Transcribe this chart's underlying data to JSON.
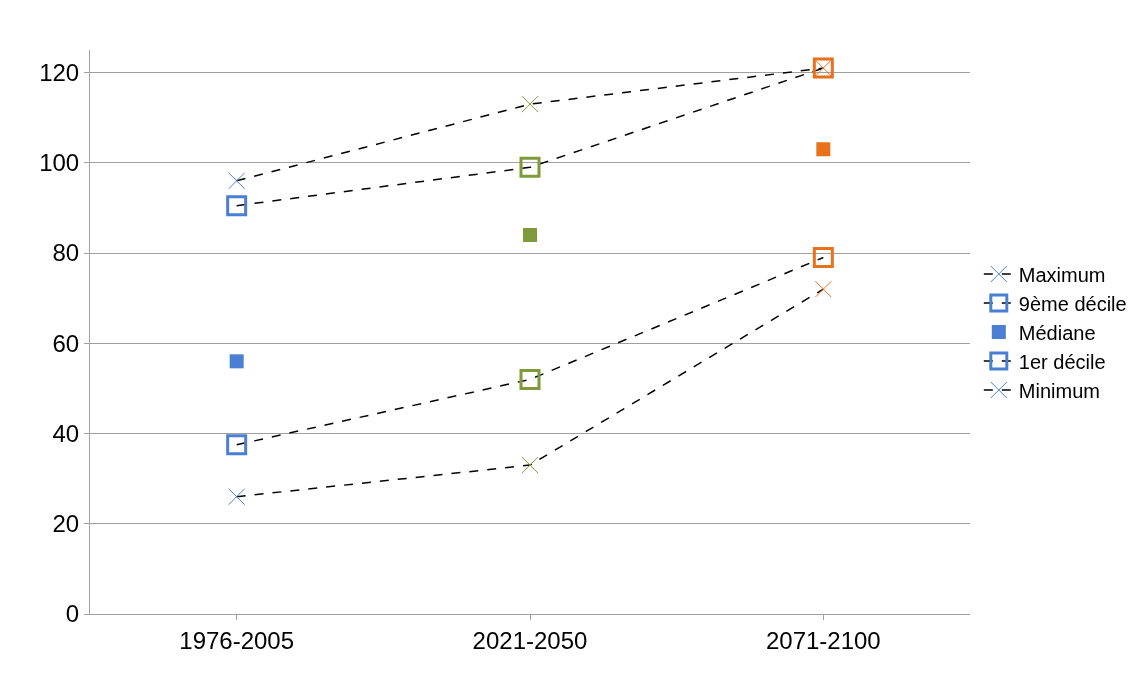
{
  "chart_data": {
    "type": "line",
    "categories": [
      "1976-2005",
      "2021-2050",
      "2071-2100"
    ],
    "ylim": [
      0,
      125
    ],
    "yticks": [
      0,
      20,
      40,
      60,
      80,
      100,
      120
    ],
    "grid": "y",
    "legend": "right",
    "line_style": "dashed",
    "series": [
      {
        "name": "Maximum",
        "marker": "cross",
        "colors": [
          "#4a7fd4",
          "#7f9a3a",
          "#e8711c"
        ],
        "values": [
          96,
          113,
          121
        ]
      },
      {
        "name": "9ème décile",
        "marker": "square",
        "colors": [
          "#4a7fd4",
          "#7f9a3a",
          "#e8711c"
        ],
        "values": [
          90.5,
          99,
          121
        ]
      },
      {
        "name": "Médiane",
        "type": "scatter",
        "marker": "square",
        "colors": [
          "#4a7fd4",
          "#7f9a3a",
          "#e8711c"
        ],
        "values": [
          56,
          84,
          103
        ]
      },
      {
        "name": "1er décile",
        "marker": "square",
        "colors": [
          "#4a7fd4",
          "#7f9a3a",
          "#e8711c"
        ],
        "values": [
          37.5,
          52,
          79
        ]
      },
      {
        "name": "Minimum",
        "marker": "cross",
        "colors": [
          "#4a7fd4",
          "#7f9a3a",
          "#e8711c"
        ],
        "values": [
          26,
          33,
          72
        ]
      }
    ]
  }
}
